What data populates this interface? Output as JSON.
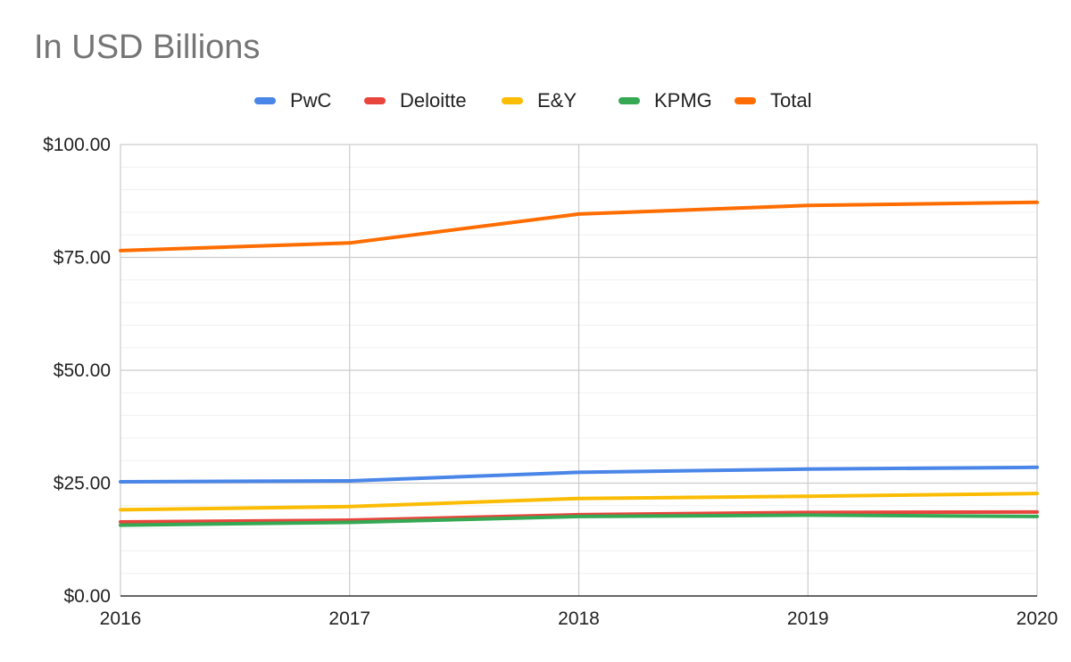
{
  "chart_data": {
    "type": "line",
    "title": "In USD Billions",
    "xlabel": "",
    "ylabel": "",
    "categories": [
      "2016",
      "2017",
      "2018",
      "2019",
      "2020"
    ],
    "ylim": [
      0,
      100
    ],
    "yticks": [
      0,
      25,
      50,
      75,
      100
    ],
    "ytick_labels": [
      "$0.00",
      "$25.00",
      "$50.00",
      "$75.00",
      "$100.00"
    ],
    "grid": true,
    "legend_position": "top",
    "series": [
      {
        "name": "PwC",
        "color": "#4a86e8",
        "values": [
          25.3,
          25.5,
          27.4,
          28.1,
          28.5
        ]
      },
      {
        "name": "Deloitte",
        "color": "#e8453c",
        "values": [
          16.4,
          16.8,
          18.0,
          18.5,
          18.6
        ]
      },
      {
        "name": "E&Y",
        "color": "#fbbc04",
        "values": [
          19.1,
          19.8,
          21.6,
          22.1,
          22.7
        ]
      },
      {
        "name": "KPMG",
        "color": "#34a853",
        "values": [
          15.7,
          16.3,
          17.6,
          17.9,
          17.6
        ]
      },
      {
        "name": "Total",
        "color": "#ff6d01",
        "values": [
          76.5,
          78.2,
          84.6,
          86.5,
          87.2
        ]
      }
    ]
  }
}
